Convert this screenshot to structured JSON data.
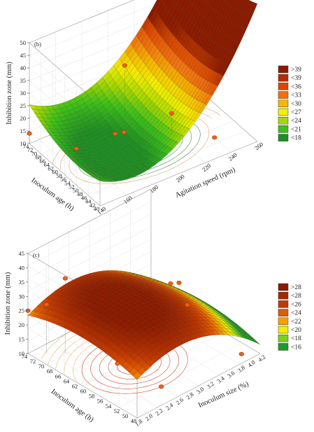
{
  "chart_data": [
    {
      "type": "surface3d",
      "panel_label": "(b)",
      "zlabel": "Inhibition zone (mm)",
      "xlabel": "Agitation speed (rpm)",
      "ylabel": "Inoculum age (h)",
      "x_ticks": [
        "140",
        "160",
        "180",
        "200",
        "220",
        "240",
        "260"
      ],
      "y_ticks": [
        "40",
        "42",
        "44",
        "46",
        "48",
        "50",
        "52",
        "54",
        "56",
        "58",
        "60",
        "62",
        "64",
        "66",
        "68",
        "70",
        "72",
        "74"
      ],
      "z_ticks": [
        "10",
        "15",
        "20",
        "25",
        "30",
        "35",
        "40",
        "45",
        "50"
      ],
      "xlim": [
        140,
        260
      ],
      "ylim": [
        40,
        74
      ],
      "zlim": [
        10,
        50
      ],
      "legend": [
        {
          "label": ">39",
          "color": "#8b1a00"
        },
        {
          "label": "<39",
          "color": "#b52d00"
        },
        {
          "label": "<36",
          "color": "#d84800"
        },
        {
          "label": "<33",
          "color": "#f07010"
        },
        {
          "label": "<30",
          "color": "#f5b800"
        },
        {
          "label": "<27",
          "color": "#f2ee00"
        },
        {
          "label": "<24",
          "color": "#a8d800"
        },
        {
          "label": "<21",
          "color": "#3cbf1a"
        },
        {
          "label": "<18",
          "color": "#1e8f24"
        }
      ],
      "observed_points": [
        {
          "x": 140,
          "y": 74,
          "z": 14
        },
        {
          "x": 200,
          "y": 66,
          "z": 34
        },
        {
          "x": 180,
          "y": 58,
          "z": 17
        },
        {
          "x": 220,
          "y": 56,
          "z": 18
        },
        {
          "x": 190,
          "y": 60,
          "z": 14
        },
        {
          "x": 160,
          "y": 64,
          "z": 11
        },
        {
          "x": 240,
          "y": 48,
          "z": 10
        }
      ]
    },
    {
      "type": "surface3d",
      "panel_label": "(c)",
      "zlabel": "Inhibition zone (mm)",
      "xlabel": "Inoculum size (%)",
      "ylabel": "Inoculum age (h)",
      "x_ticks": [
        "1.8",
        "2.0",
        "2.2",
        "2.4",
        "2.6",
        "2.8",
        "3.0",
        "3.2",
        "3.4",
        "3.6",
        "3.8",
        "4.0",
        "4.2"
      ],
      "y_ticks": [
        "48",
        "50",
        "52",
        "54",
        "56",
        "58",
        "60",
        "62",
        "64",
        "66",
        "68",
        "70",
        "72",
        "74"
      ],
      "z_ticks": [
        "10",
        "15",
        "20",
        "25",
        "30",
        "35",
        "40",
        "45"
      ],
      "xlim": [
        1.8,
        4.2
      ],
      "ylim": [
        48,
        74
      ],
      "zlim": [
        10,
        45
      ],
      "legend": [
        {
          "label": ">28",
          "color": "#8b1a00"
        },
        {
          "label": "<28",
          "color": "#a42800"
        },
        {
          "label": "<26",
          "color": "#c23800"
        },
        {
          "label": "<24",
          "color": "#e05a00"
        },
        {
          "label": "<22",
          "color": "#f5a200"
        },
        {
          "label": "<20",
          "color": "#f2ee00"
        },
        {
          "label": "<18",
          "color": "#79d11c"
        },
        {
          "label": "<16",
          "color": "#1e9a2a"
        }
      ],
      "observed_points": [
        {
          "x": 1.8,
          "y": 74,
          "z": 25
        },
        {
          "x": 2.2,
          "y": 70,
          "z": 36
        },
        {
          "x": 2.0,
          "y": 72,
          "z": 27
        },
        {
          "x": 3.6,
          "y": 60,
          "z": 30
        },
        {
          "x": 3.6,
          "y": 62,
          "z": 28
        },
        {
          "x": 3.6,
          "y": 58,
          "z": 24
        },
        {
          "x": 2.4,
          "y": 60,
          "z": 13
        },
        {
          "x": 2.6,
          "y": 52,
          "z": 10
        },
        {
          "x": 4.0,
          "y": 50,
          "z": 10
        }
      ]
    }
  ]
}
